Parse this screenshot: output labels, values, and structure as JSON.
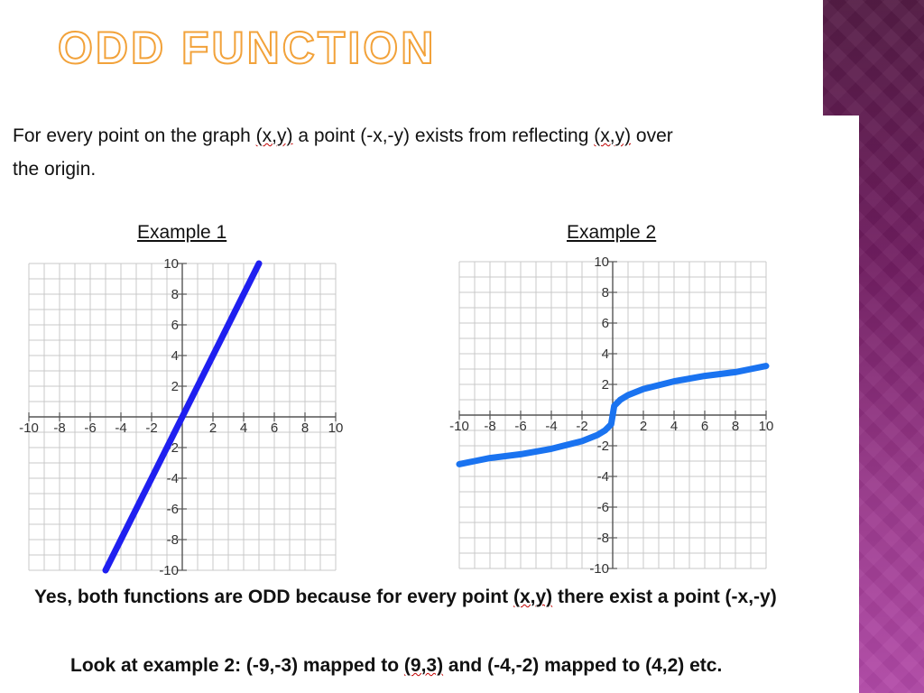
{
  "slide": {
    "title": "ODD FUNCTION",
    "intro": {
      "p1": "For every point on the graph ",
      "q1": "(x,y)",
      "p2": " a point (-x,-y) exists from reflecting ",
      "q2": "(x,y)",
      "p3": " over",
      "line2": "the origin."
    },
    "example1_label": "Example 1",
    "example2_label": "Example 2",
    "conclusion": {
      "pre": "Yes, both functions are ODD because for every point ",
      "q": "(x,y)",
      "post": " there exist a point (-x,-y)"
    },
    "note": {
      "pre": "Look at example 2:  (-9,-3) mapped to ",
      "q": "(9,3)",
      "post": " and (-4,-2) mapped to (4,2) etc."
    }
  },
  "chart_data": [
    {
      "type": "line",
      "title": "Example 1",
      "xlim": [
        -10,
        10
      ],
      "ylim": [
        -10,
        10
      ],
      "grid": true,
      "x_ticks": [
        "-10",
        "-8",
        "-6",
        "-4",
        "-2",
        "2",
        "4",
        "6",
        "8",
        "10"
      ],
      "y_ticks": [
        "10",
        "8",
        "6",
        "4",
        "2",
        "-2",
        "-4",
        "-6",
        "-8",
        "-10"
      ],
      "series": [
        {
          "color": "#1f1ff0",
          "x": [
            -5,
            5
          ],
          "y": [
            -10,
            10
          ]
        }
      ]
    },
    {
      "type": "line",
      "title": "Example 2",
      "xlim": [
        -10,
        10
      ],
      "ylim": [
        -10,
        10
      ],
      "grid": true,
      "x_ticks": [
        "-10",
        "-8",
        "-6",
        "-4",
        "-2",
        "2",
        "4",
        "6",
        "8",
        "10"
      ],
      "y_ticks": [
        "10",
        "8",
        "6",
        "4",
        "2",
        "-2",
        "-4",
        "-6",
        "-8",
        "-10"
      ],
      "series": [
        {
          "color": "#1a73f0",
          "x": [
            -10,
            -9,
            -8,
            -6,
            -4,
            -2,
            -1,
            -0.5,
            -0.1,
            0,
            0.1,
            0.5,
            1,
            2,
            4,
            6,
            8,
            9,
            10
          ],
          "y": [
            -3.2,
            -3.0,
            -2.8,
            -2.55,
            -2.2,
            -1.7,
            -1.3,
            -1.0,
            -0.6,
            0,
            0.6,
            1.0,
            1.3,
            1.7,
            2.2,
            2.55,
            2.8,
            3.0,
            3.2
          ]
        }
      ]
    }
  ]
}
